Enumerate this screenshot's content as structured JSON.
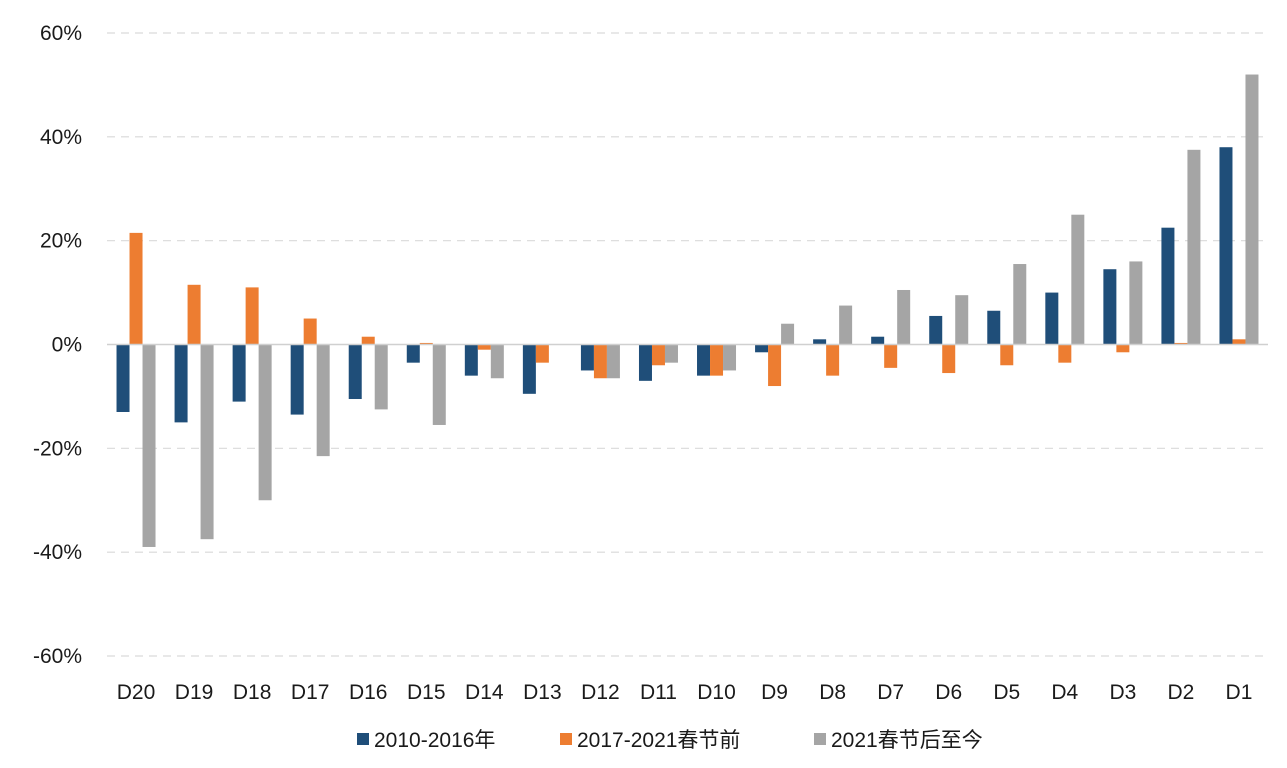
{
  "chart_data": {
    "type": "bar",
    "categories": [
      "D20",
      "D19",
      "D18",
      "D17",
      "D16",
      "D15",
      "D14",
      "D13",
      "D12",
      "D11",
      "D10",
      "D9",
      "D8",
      "D7",
      "D6",
      "D5",
      "D4",
      "D3",
      "D2",
      "D1"
    ],
    "series": [
      {
        "name": "2010-2016年",
        "color": "#1f4e79",
        "values": [
          -13,
          -15,
          -11,
          -13.5,
          -10.5,
          -3.5,
          -6,
          -9.5,
          -5,
          -7,
          -6,
          -1.5,
          1,
          1.5,
          5.5,
          6.5,
          10,
          14.5,
          22.5,
          38
        ]
      },
      {
        "name": "2017-2021春节前",
        "color": "#ed7d31",
        "values": [
          21.5,
          11.5,
          11,
          5,
          1.5,
          0.3,
          -1,
          -3.5,
          -6.5,
          -4,
          -6,
          -8,
          -6,
          -4.5,
          -5.5,
          -4,
          -3.5,
          -1.5,
          0.3,
          1
        ]
      },
      {
        "name": "2021春节后至今",
        "color": "#a5a5a5",
        "values": [
          -39,
          -37.5,
          -30,
          -21.5,
          -12.5,
          -15.5,
          -6.5,
          0,
          -6.5,
          -3.5,
          -5,
          4,
          7.5,
          10.5,
          9.5,
          15.5,
          25,
          16,
          37.5,
          52
        ]
      }
    ],
    "y_ticks": [
      "60%",
      "40%",
      "20%",
      "0%",
      "-20%",
      "-40%",
      "-60%"
    ],
    "y_tick_values": [
      60,
      40,
      20,
      0,
      -20,
      -40,
      -60
    ],
    "ylim": [
      -60,
      60
    ],
    "grid": true,
    "legend_position": "bottom-center"
  }
}
